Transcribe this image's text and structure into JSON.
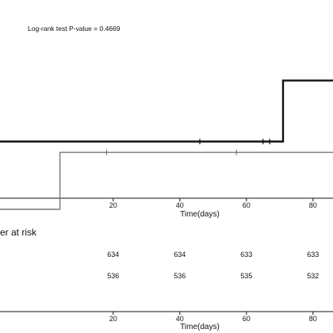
{
  "chart_data": [
    {
      "type": "line",
      "subtype": "step",
      "annotation": "Log-rank test P-value = 0.4669",
      "xlabel": "Time(days)",
      "xlim": [
        -14,
        86
      ],
      "ylim": [
        0,
        1
      ],
      "x_ticks": [
        "20",
        "40",
        "60",
        "80"
      ],
      "x_tick_values": [
        20,
        40,
        60,
        80
      ],
      "series": [
        {
          "color": "#111111",
          "style": "thick",
          "x": [
            -14,
            71,
            71,
            86
          ],
          "y": [
            0.5,
            0.5,
            0.95,
            0.95
          ],
          "censor_x": [
            46,
            65,
            67
          ]
        },
        {
          "color": "#777777",
          "style": "thin",
          "x": [
            -14,
            4,
            4,
            86
          ],
          "y": [
            0.0,
            0.0,
            0.42,
            0.42
          ],
          "censor_x": [
            18,
            57
          ]
        }
      ]
    },
    {
      "type": "table",
      "title": "er at risk",
      "xlabel": "Time(days)",
      "x_ticks": [
        "20",
        "40",
        "60",
        "80"
      ],
      "x_tick_values": [
        20,
        40,
        60,
        80
      ],
      "rows": [
        {
          "values": [
            "634",
            "634",
            "633",
            "633"
          ]
        },
        {
          "values": [
            "536",
            "536",
            "535",
            "532"
          ]
        }
      ]
    }
  ]
}
